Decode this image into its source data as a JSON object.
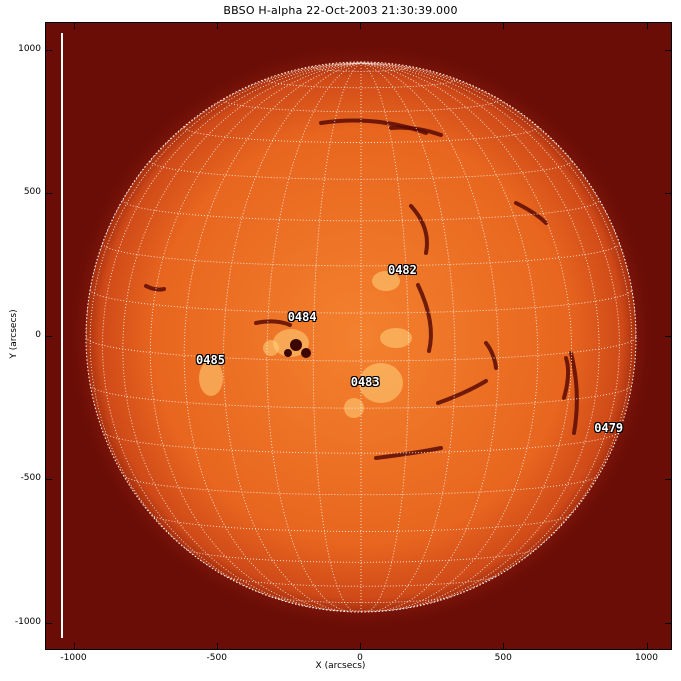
{
  "title": "BBSO H-alpha 22-Oct-2003 21:30:39.000",
  "xlabel": "X (arcsecs)",
  "ylabel": "Y (arcsecs)",
  "x_ticks": [
    "-1000",
    "-500",
    "0",
    "500",
    "1000"
  ],
  "y_ticks": [
    "1000",
    "500",
    "0",
    "-500",
    "-1000"
  ],
  "active_regions": [
    {
      "label": "0482",
      "x": 150,
      "y": 230
    },
    {
      "label": "0484",
      "x": -200,
      "y": 65
    },
    {
      "label": "0485",
      "x": -520,
      "y": -85
    },
    {
      "label": "0483",
      "x": 20,
      "y": -160
    },
    {
      "label": "0479",
      "x": 870,
      "y": -320
    }
  ],
  "colors": {
    "background": "#6a0d06",
    "disk_center": "#f07a2a",
    "disk_limb": "#c8401a",
    "grid": "#ffffff"
  }
}
